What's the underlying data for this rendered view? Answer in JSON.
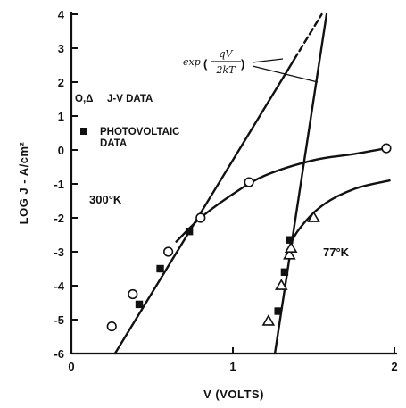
{
  "chart_data": {
    "type": "scatter",
    "title": "",
    "xlabel": "V (VOLTS)",
    "ylabel": "LOG J - A/cm²",
    "xlim": [
      0,
      2
    ],
    "ylim": [
      -6,
      4
    ],
    "x_ticks": [
      0,
      1,
      2
    ],
    "x_tick_labels": [
      "0",
      "1",
      "2"
    ],
    "y_ticks": [
      4,
      3,
      2,
      1,
      0,
      -1,
      -2,
      -3,
      -4,
      -5,
      -6
    ],
    "y_tick_labels": [
      "4",
      "3",
      "2",
      "1",
      "0",
      "-1",
      "-2",
      "-3",
      "-4",
      "-5",
      "-6"
    ],
    "grid": false,
    "legend": [
      {
        "symbol": "o,△",
        "label": "J-V DATA"
      },
      {
        "symbol": "■",
        "label": "PHOTOVOLTAIC DATA"
      }
    ],
    "legend_lines": {
      "jv_symbols": "O,Δ",
      "jv_label": "J-V DATA",
      "pv_line1": "PHOTOVOLTAIC",
      "pv_line2": "DATA"
    },
    "annotations": {
      "temp_300": "300°K",
      "temp_77": "77°K",
      "exp_prefix": "exp",
      "exp_numerator": "qV",
      "exp_denominator": "2kT"
    },
    "series": [
      {
        "name": "300°K J-V data",
        "marker": "circle",
        "points": [
          [
            0.25,
            -5.2
          ],
          [
            0.38,
            -4.25
          ],
          [
            0.6,
            -3.0
          ],
          [
            0.8,
            -2.0
          ],
          [
            1.1,
            -0.95
          ],
          [
            1.95,
            0.05
          ]
        ]
      },
      {
        "name": "300°K photovoltaic data",
        "marker": "square",
        "points": [
          [
            0.42,
            -4.55
          ],
          [
            0.55,
            -3.5
          ],
          [
            0.73,
            -2.4
          ]
        ]
      },
      {
        "name": "77°K J-V data",
        "marker": "triangle",
        "points": [
          [
            1.22,
            -5.05
          ],
          [
            1.3,
            -4.0
          ],
          [
            1.35,
            -3.1
          ],
          [
            1.36,
            -2.9
          ],
          [
            1.5,
            -2.0
          ]
        ]
      },
      {
        "name": "77°K photovoltaic data",
        "marker": "square",
        "points": [
          [
            1.28,
            -4.75
          ],
          [
            1.32,
            -3.6
          ],
          [
            1.35,
            -2.65
          ]
        ]
      }
    ],
    "lines": [
      {
        "name": "300°K exp(qV/2kT) fit",
        "style": "solid-then-dashed",
        "points": [
          [
            0.27,
            -6.0
          ],
          [
            1.55,
            4.0
          ]
        ],
        "dash_from_x": 1.38
      },
      {
        "name": "300°K J-V curve",
        "style": "solid",
        "points": [
          [
            0.65,
            -2.7
          ],
          [
            0.8,
            -2.0
          ],
          [
            1.0,
            -1.3
          ],
          [
            1.2,
            -0.75
          ],
          [
            1.5,
            -0.3
          ],
          [
            1.75,
            -0.12
          ],
          [
            1.95,
            0.05
          ]
        ]
      },
      {
        "name": "77°K exp(qV/2kT) fit",
        "style": "solid",
        "points": [
          [
            1.26,
            -6.0
          ],
          [
            1.58,
            4.0
          ]
        ]
      },
      {
        "name": "77°K J-V curve",
        "style": "solid",
        "points": [
          [
            1.33,
            -3.1
          ],
          [
            1.4,
            -2.4
          ],
          [
            1.55,
            -1.65
          ],
          [
            1.75,
            -1.15
          ],
          [
            1.97,
            -0.9
          ]
        ]
      }
    ]
  }
}
